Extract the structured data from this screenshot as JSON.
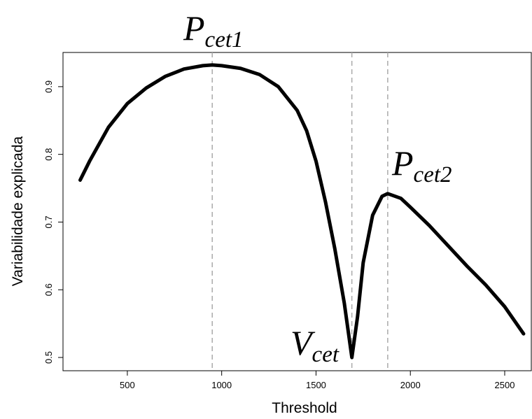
{
  "chart_data": {
    "type": "line",
    "x_label": "Threshold",
    "y_label": "Variabilidade explicada",
    "x": [
      250,
      300,
      400,
      500,
      600,
      700,
      800,
      900,
      950,
      1000,
      1100,
      1200,
      1300,
      1400,
      1450,
      1500,
      1550,
      1600,
      1650,
      1690,
      1720,
      1750,
      1800,
      1850,
      1880,
      1950,
      2000,
      2100,
      2200,
      2300,
      2400,
      2500,
      2600
    ],
    "values": [
      0.762,
      0.79,
      0.84,
      0.875,
      0.898,
      0.915,
      0.926,
      0.931,
      0.932,
      0.931,
      0.927,
      0.918,
      0.9,
      0.865,
      0.835,
      0.79,
      0.73,
      0.66,
      0.58,
      0.5,
      0.56,
      0.64,
      0.71,
      0.738,
      0.742,
      0.735,
      0.722,
      0.695,
      0.665,
      0.635,
      0.607,
      0.575,
      0.535
    ],
    "color": "#000000",
    "xlim": [
      159,
      2641
    ],
    "ylim": [
      0.4804,
      0.9505
    ],
    "xticks": [
      500,
      1000,
      1500,
      2000,
      2500
    ],
    "yticks": [
      0.5,
      0.6,
      0.7,
      0.8,
      0.9
    ],
    "vlines": [
      950,
      1690,
      1880
    ],
    "annotations": [
      {
        "text": "P",
        "sub": "cet1"
      },
      {
        "text": "P",
        "sub": "cet2"
      },
      {
        "text": "V",
        "sub": "cet"
      }
    ]
  }
}
